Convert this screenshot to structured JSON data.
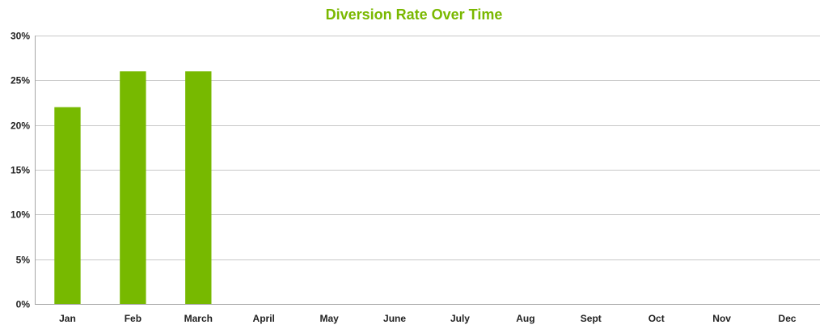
{
  "chart_data": {
    "type": "bar",
    "title": "Diversion Rate Over Time",
    "xlabel": "",
    "ylabel": "",
    "categories": [
      "Jan",
      "Feb",
      "March",
      "April",
      "May",
      "June",
      "July",
      "Aug",
      "Sept",
      "Oct",
      "Nov",
      "Dec"
    ],
    "values": [
      0.22,
      0.26,
      0.26,
      null,
      null,
      null,
      null,
      null,
      null,
      null,
      null,
      null
    ],
    "ylim": [
      0,
      0.3
    ],
    "yticks": [
      0,
      0.05,
      0.1,
      0.15,
      0.2,
      0.25,
      0.3
    ],
    "ytick_labels": [
      "0%",
      "5%",
      "10%",
      "15%",
      "20%",
      "25%",
      "30%"
    ],
    "grid": true,
    "legend": "none",
    "colors": {
      "bar": "#77b900",
      "title": "#7ab800",
      "grid": "#c8c8c8",
      "axis": "#a6a6a6"
    }
  }
}
